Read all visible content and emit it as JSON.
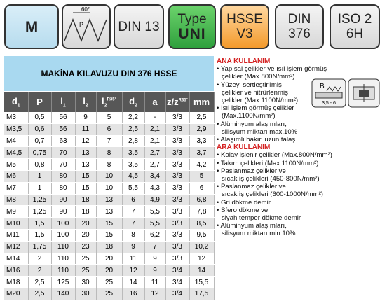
{
  "badges": {
    "m": "M",
    "angle": "60°",
    "pitch": "P",
    "din13": "DIN 13",
    "type_top": "Type",
    "type_bottom": "UNI",
    "hsse_top": "HSSE",
    "hsse_bottom": "V3",
    "din376_top": "DIN",
    "din376_bottom": "376",
    "iso_top": "ISO 2",
    "iso_bottom": "6H"
  },
  "table": {
    "title": "MAKİNA KILAVUZU DIN 376 HSSE",
    "headers": [
      {
        "base": "d",
        "sub": "1"
      },
      {
        "base": "P"
      },
      {
        "base": "l",
        "sub": "1"
      },
      {
        "base": "l",
        "sub": "2"
      },
      {
        "base": "l",
        "sub": "2",
        "sup": "R35°"
      },
      {
        "base": "d",
        "sub": "2"
      },
      {
        "base": "a"
      },
      {
        "base": "z/z",
        "sup": "R35°"
      },
      {
        "base": "mm"
      }
    ],
    "rows": [
      [
        "M3",
        "0,5",
        "56",
        "9",
        "5",
        "2,2",
        "-",
        "3/3",
        "2,5"
      ],
      [
        "M3,5",
        "0,6",
        "56",
        "11",
        "6",
        "2,5",
        "2,1",
        "3/3",
        "2,9"
      ],
      [
        "M4",
        "0,7",
        "63",
        "12",
        "7",
        "2,8",
        "2,1",
        "3/3",
        "3,3"
      ],
      [
        "M4,5",
        "0,75",
        "70",
        "13",
        "8",
        "3,5",
        "2,7",
        "3/3",
        "3,7"
      ],
      [
        "M5",
        "0,8",
        "70",
        "13",
        "8",
        "3,5",
        "2,7",
        "3/3",
        "4,2"
      ],
      [
        "M6",
        "1",
        "80",
        "15",
        "10",
        "4,5",
        "3,4",
        "3/3",
        "5"
      ],
      [
        "M7",
        "1",
        "80",
        "15",
        "10",
        "5,5",
        "4,3",
        "3/3",
        "6"
      ],
      [
        "M8",
        "1,25",
        "90",
        "18",
        "13",
        "6",
        "4,9",
        "3/3",
        "6,8"
      ],
      [
        "M9",
        "1,25",
        "90",
        "18",
        "13",
        "7",
        "5,5",
        "3/3",
        "7,8"
      ],
      [
        "M10",
        "1,5",
        "100",
        "20",
        "15",
        "7",
        "5,5",
        "3/3",
        "8,5"
      ],
      [
        "M11",
        "1,5",
        "100",
        "20",
        "15",
        "8",
        "6,2",
        "3/3",
        "9,5"
      ],
      [
        "M12",
        "1,75",
        "110",
        "23",
        "18",
        "9",
        "7",
        "3/3",
        "10,2"
      ],
      [
        "M14",
        "2",
        "110",
        "25",
        "20",
        "11",
        "9",
        "3/3",
        "12"
      ],
      [
        "M16",
        "2",
        "110",
        "25",
        "20",
        "12",
        "9",
        "3/4",
        "14"
      ],
      [
        "M18",
        "2,5",
        "125",
        "30",
        "25",
        "14",
        "11",
        "3/4",
        "15,5"
      ],
      [
        "M20",
        "2,5",
        "140",
        "30",
        "25",
        "16",
        "12",
        "3/4",
        "17,5"
      ]
    ]
  },
  "usage": [
    {
      "title": "ANA KULLANIM",
      "items": [
        [
          "Yapısal çelikler ve ısıl işlem görmüş",
          "çelikler (Max.800N/mm²)"
        ],
        [
          "Yüzeyi sertleştirilmiş",
          "çelikler ve nitrürlenmiş",
          "çelikler (Max.1100N/mm²)"
        ],
        [
          "Isıl işlem görmüş çelikler",
          "(Max.1100N/mm²)"
        ],
        [
          "Alüminyum alaşımları,",
          "silisyum miktarı max.10%"
        ],
        [
          "Alaşımlı bakır, uzun talaş"
        ]
      ]
    },
    {
      "title": "ARA KULLANIM",
      "items": [
        [
          "Kolay işlenir çelikler (Max.800N/mm²)"
        ],
        [
          "Takım çelikleri (Max.1100N/mm²)"
        ],
        [
          "Paslanmaz çelikler ve",
          "sıcak iş çelikleri (450-800N/mm²)"
        ],
        [
          "Paslanmaz çelikler ve",
          "sıcak iş çelikleri (600-1000N/mm²)"
        ],
        [
          "Gri dökme demir"
        ],
        [
          "Sfero dökme ve",
          "siyah temper dökme demir"
        ],
        [
          "Alüminyum alaşımları,",
          "silisyum miktarı min.10%"
        ]
      ]
    }
  ],
  "icon": {
    "label": "B",
    "range": "3,5 - 6"
  }
}
